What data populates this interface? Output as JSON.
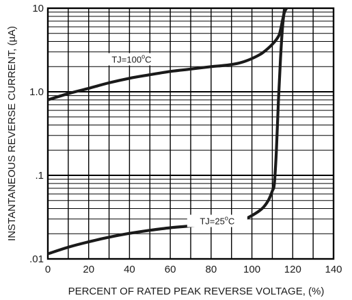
{
  "chart_data": {
    "type": "line",
    "title": "",
    "xlabel": "PERCENT OF RATED PEAK REVERSE VOLTAGE, (%)",
    "ylabel": "INSTANTANEOUS REVERSE CURRENT, (µA)",
    "x_scale": "linear",
    "y_scale": "log",
    "xlim": [
      0,
      140
    ],
    "ylim": [
      0.01,
      10
    ],
    "grid": true,
    "x_ticks": [
      0,
      20,
      40,
      60,
      80,
      100,
      120,
      140
    ],
    "x_tick_labels": [
      "0",
      "20",
      "40",
      "60",
      "80",
      "100",
      "120",
      "140"
    ],
    "y_ticks": [
      0.01,
      0.1,
      1,
      10
    ],
    "y_tick_labels": [
      ".01",
      ".1",
      "1.0",
      "10"
    ],
    "series": [
      {
        "annotation": {
          "prefix": "TJ=100",
          "sup": "o",
          "suffix": "C"
        },
        "x": [
          0,
          10,
          20,
          30,
          40,
          50,
          60,
          70,
          80,
          85,
          90,
          95,
          100,
          105,
          110,
          113,
          114,
          115,
          116,
          117
        ],
        "y": [
          0.8,
          0.95,
          1.1,
          1.28,
          1.45,
          1.6,
          1.75,
          1.87,
          2.0,
          2.05,
          2.12,
          2.25,
          2.5,
          2.9,
          3.7,
          4.6,
          5.5,
          7.2,
          9.0,
          10.0
        ]
      },
      {
        "annotation": {
          "prefix": "TJ=25",
          "sup": "o",
          "suffix": "C"
        },
        "x": [
          0,
          10,
          20,
          30,
          40,
          50,
          60,
          70,
          80,
          90,
          95,
          100,
          105,
          108,
          110,
          111,
          112,
          113,
          114,
          115,
          116
        ],
        "y": [
          0.0115,
          0.0138,
          0.016,
          0.0182,
          0.0202,
          0.022,
          0.0236,
          0.0248,
          0.026,
          0.0275,
          0.029,
          0.033,
          0.04,
          0.05,
          0.065,
          0.08,
          0.2,
          0.8,
          2.5,
          6.0,
          10.0
        ]
      }
    ]
  }
}
